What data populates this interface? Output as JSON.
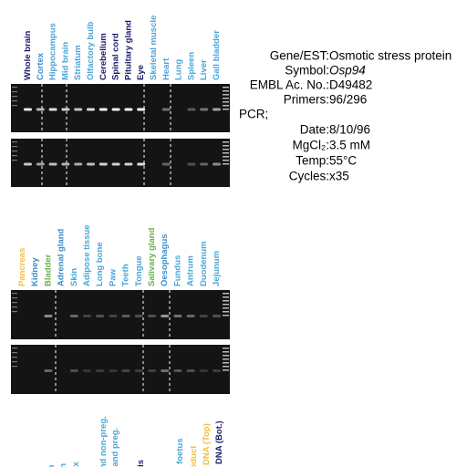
{
  "top_panel": {
    "lanes": [
      {
        "label": "Whole brain",
        "color": "#1a1a6e"
      },
      {
        "label": "Cortex",
        "color": "#3a8ec8"
      },
      {
        "label": "Hippocampus",
        "color": "#4aa6d8"
      },
      {
        "label": "Mid brain",
        "color": "#4aa6d8"
      },
      {
        "label": "Striatum",
        "color": "#4aa6d8"
      },
      {
        "label": "Olfactory bulb",
        "color": "#4aa6d8"
      },
      {
        "label": "Cerebellum",
        "color": "#1a1a6e"
      },
      {
        "label": "Spinal cord",
        "color": "#1a1a6e"
      },
      {
        "label": "Pituitary gland",
        "color": "#1a1a6e"
      },
      {
        "label": "Eye",
        "color": "#1a1a6e"
      },
      {
        "label": "Skeletal muscle",
        "color": "#4aa6d8"
      },
      {
        "label": "Heart",
        "color": "#4aa6d8"
      },
      {
        "label": "Lung",
        "color": "#4aa6d8"
      },
      {
        "label": "Spleen",
        "color": "#4aa6d8"
      },
      {
        "label": "Liver",
        "color": "#4aa6d8"
      },
      {
        "label": "Gall bladder",
        "color": "#4aa6d8"
      }
    ]
  },
  "middle_panel": {
    "lanes": [
      {
        "label": "Pancreas",
        "color": "#f0c040"
      },
      {
        "label": "Kidney",
        "color": "#3a8ec8"
      },
      {
        "label": "Bladder",
        "color": "#6ab04c"
      },
      {
        "label": "Adrenal gland",
        "color": "#3a8ec8"
      },
      {
        "label": "Skin",
        "color": "#4aa6d8"
      },
      {
        "label": "Adipose tissue",
        "color": "#4aa6d8"
      },
      {
        "label": "Long bone",
        "color": "#4aa6d8"
      },
      {
        "label": "Paw",
        "color": "#4aa6d8"
      },
      {
        "label": "Teeth",
        "color": "#4aa6d8"
      },
      {
        "label": "Tongue",
        "color": "#4aa6d8"
      },
      {
        "label": "Salivary gland",
        "color": "#6ab04c"
      },
      {
        "label": "Oesophagus",
        "color": "#3a8ec8"
      },
      {
        "label": "Fundus",
        "color": "#4aa6d8"
      },
      {
        "label": "Antrum",
        "color": "#4aa6d8"
      },
      {
        "label": "Duodenum",
        "color": "#4aa6d8"
      },
      {
        "label": "Jejunum",
        "color": "#4aa6d8"
      }
    ]
  },
  "bottom_panel": {
    "lanes": [
      {
        "label": "n",
        "color": "#4aa6d8"
      },
      {
        "label": "lon",
        "color": "#4aa6d8"
      },
      {
        "label": "olon",
        "color": "#4aa6d8"
      },
      {
        "label": "dix",
        "color": "#4aa6d8"
      },
      {
        "label": "s",
        "color": "#4aa6d8"
      },
      {
        "label": "gland non-preg.",
        "color": "#4aa6d8"
      },
      {
        "label": "gland preg.",
        "color": "#4aa6d8"
      },
      {
        "label": "rmis",
        "color": "#1a1a6e"
      },
      {
        "label": "la",
        "color": "#4aa6d8"
      },
      {
        "label": "m foetus",
        "color": "#4aa6d8"
      },
      {
        "label": "product",
        "color": "#f0c040"
      },
      {
        "label": "DNA (Top)",
        "color": "#f0c040"
      },
      {
        "label": "DNA (Bot.)",
        "color": "#1a1a6e"
      }
    ]
  },
  "info": {
    "rows": [
      {
        "label": "Gene/EST:",
        "value": "Osmotic stress protein"
      },
      {
        "label": "Symbol:",
        "value": "Osp94"
      },
      {
        "label": "EMBL Ac. No.:",
        "value": "D49482"
      },
      {
        "label": "Primers:",
        "value": "96/296"
      }
    ],
    "section": "PCR;",
    "pcr_rows": [
      {
        "label": "Date:",
        "value": "8/10/96"
      },
      {
        "label": "MgCl₂:",
        "value": "3.5 mM"
      },
      {
        "label": "Temp:",
        "value": "55°C"
      },
      {
        "label": "Cycles:",
        "value": "x35"
      }
    ]
  }
}
